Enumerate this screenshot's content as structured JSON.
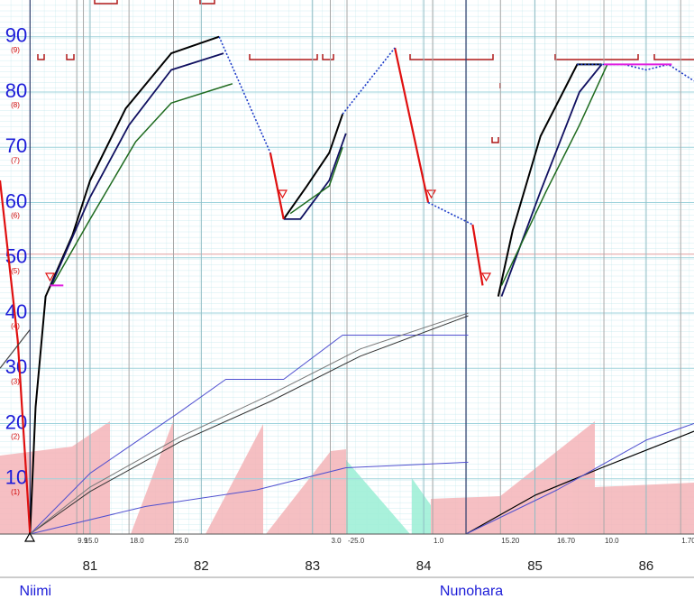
{
  "chart_data": {
    "type": "line",
    "xlim": [
      80.19,
      86.43
    ],
    "ylim": [
      0,
      96.65
    ],
    "yticks": [
      10,
      20,
      30,
      40,
      50,
      60,
      70,
      80,
      90
    ],
    "notch_labels": [
      "(1)",
      "(2)",
      "(3)",
      "(4)",
      "(5)",
      "(6)",
      "(7)",
      "(8)",
      "(9)"
    ],
    "xticks": [
      81,
      82,
      83,
      84,
      85,
      86
    ],
    "grid": true,
    "stations": [
      {
        "name": "Niimi",
        "x": 80.46
      },
      {
        "name": "Nunohara",
        "x": 84.38
      }
    ],
    "annotations": [
      {
        "label": "9.9",
        "x": 80.88
      },
      {
        "label": "15.0",
        "x": 80.94
      },
      {
        "label": "18.0",
        "x": 81.35
      },
      {
        "label": "25.0",
        "x": 81.75
      },
      {
        "label": "3.0",
        "x": 83.16
      },
      {
        "label": "-25.0",
        "x": 83.31
      },
      {
        "label": "1.0",
        "x": 84.08
      },
      {
        "label": "15.20",
        "x": 84.69
      },
      {
        "label": "16.70",
        "x": 85.19
      },
      {
        "label": "10.0",
        "x": 85.62
      },
      {
        "label": "1.70",
        "x": 86.31
      }
    ],
    "series": [
      {
        "color": "#000000",
        "width": 2,
        "x": [
          80.46,
          80.51,
          80.6,
          80.84,
          81.0,
          81.32,
          81.73,
          82.16,
          82.4,
          82.74,
          82.95,
          83.15,
          83.27,
          84.0,
          84.67,
          84.8,
          85.05,
          85.38,
          85.6
        ],
        "values": [
          0,
          23,
          43,
          54,
          64,
          77,
          87,
          90,
          null,
          57,
          63,
          69,
          76,
          null,
          43,
          55,
          72,
          85,
          85
        ]
      },
      {
        "color": "#101060",
        "width": 1.8,
        "x": [
          80.65,
          81.0,
          81.35,
          81.73,
          82.2,
          82.5,
          82.74,
          82.89,
          83.15,
          83.3,
          84.0,
          84.7,
          85.05,
          85.4,
          85.6
        ],
        "values": [
          45,
          61,
          74,
          84,
          87,
          null,
          57,
          57,
          64,
          72.5,
          null,
          43,
          62,
          80,
          85
        ]
      },
      {
        "color": "#1e6a1e",
        "width": 1.5,
        "x": [
          80.66,
          81.0,
          81.41,
          81.73,
          82.28,
          82.5,
          82.8,
          83.15,
          83.27,
          84.0,
          84.7,
          85.1,
          85.4,
          85.65
        ],
        "values": [
          45,
          57,
          71,
          78,
          81.5,
          null,
          58,
          63,
          70,
          null,
          45,
          62,
          74,
          85
        ]
      },
      {
        "color": "#e01010",
        "width": 2.2,
        "x": [
          80.19,
          80.35,
          80.46,
          81.0,
          82.62,
          82.74,
          83.0,
          83.74,
          84.04,
          84.2,
          84.44,
          84.53
        ],
        "values": [
          64,
          35,
          0,
          null,
          69,
          57,
          null,
          88,
          60,
          null,
          56,
          45
        ]
      },
      {
        "color": "#1e3cc8",
        "width": 1.6,
        "dash": "2,2",
        "x": [
          82.16,
          82.62,
          82.7,
          83.27,
          83.74,
          83.9,
          84.04,
          84.44,
          84.9,
          85.38,
          85.6,
          85.8,
          86.0,
          86.2,
          86.43
        ],
        "values": [
          90,
          69,
          null,
          76,
          88,
          null,
          60,
          56,
          null,
          85,
          85,
          85,
          84,
          85,
          82
        ]
      },
      {
        "color": "#e020e0",
        "width": 2,
        "x": [
          80.64,
          80.76,
          81.0,
          85.62,
          86.23
        ],
        "values": [
          45,
          45,
          null,
          85,
          85
        ]
      },
      {
        "color": "#5050d0",
        "width": 1,
        "x": [
          80.46,
          81.0,
          81.8,
          82.22,
          82.74,
          83.27,
          84.4
        ],
        "values": [
          0,
          11,
          22,
          28,
          28,
          36,
          36
        ]
      },
      {
        "color": "#5050d0",
        "width": 1,
        "x": [
          80.46,
          81.5,
          82.5,
          83.3,
          84.4
        ],
        "values": [
          0,
          5,
          8,
          12,
          13
        ]
      },
      {
        "color": "#333333",
        "width": 1,
        "x": [
          80.46,
          81.0,
          81.81,
          82.62,
          83.43,
          84.4
        ],
        "values": [
          0,
          7.7,
          16.7,
          24,
          32.2,
          39.5
        ]
      },
      {
        "color": "#777777",
        "width": 1,
        "x": [
          80.46,
          81.0,
          81.81,
          82.62,
          83.43,
          84.4
        ],
        "values": [
          0,
          8.5,
          17.6,
          25.2,
          33.5,
          40
        ]
      },
      {
        "color": "#000000",
        "width": 1.2,
        "x": [
          84.38,
          85.0,
          85.6,
          86.43
        ],
        "values": [
          0,
          7,
          12,
          18.6
        ]
      },
      {
        "color": "#5050d0",
        "width": 1,
        "x": [
          84.38,
          85.2,
          86.0,
          86.43
        ],
        "values": [
          0,
          8,
          17,
          20
        ]
      },
      {
        "color": "#444444",
        "width": 1.2,
        "x": [
          80.19,
          80.46
        ],
        "values": [
          30,
          37
        ]
      }
    ]
  }
}
